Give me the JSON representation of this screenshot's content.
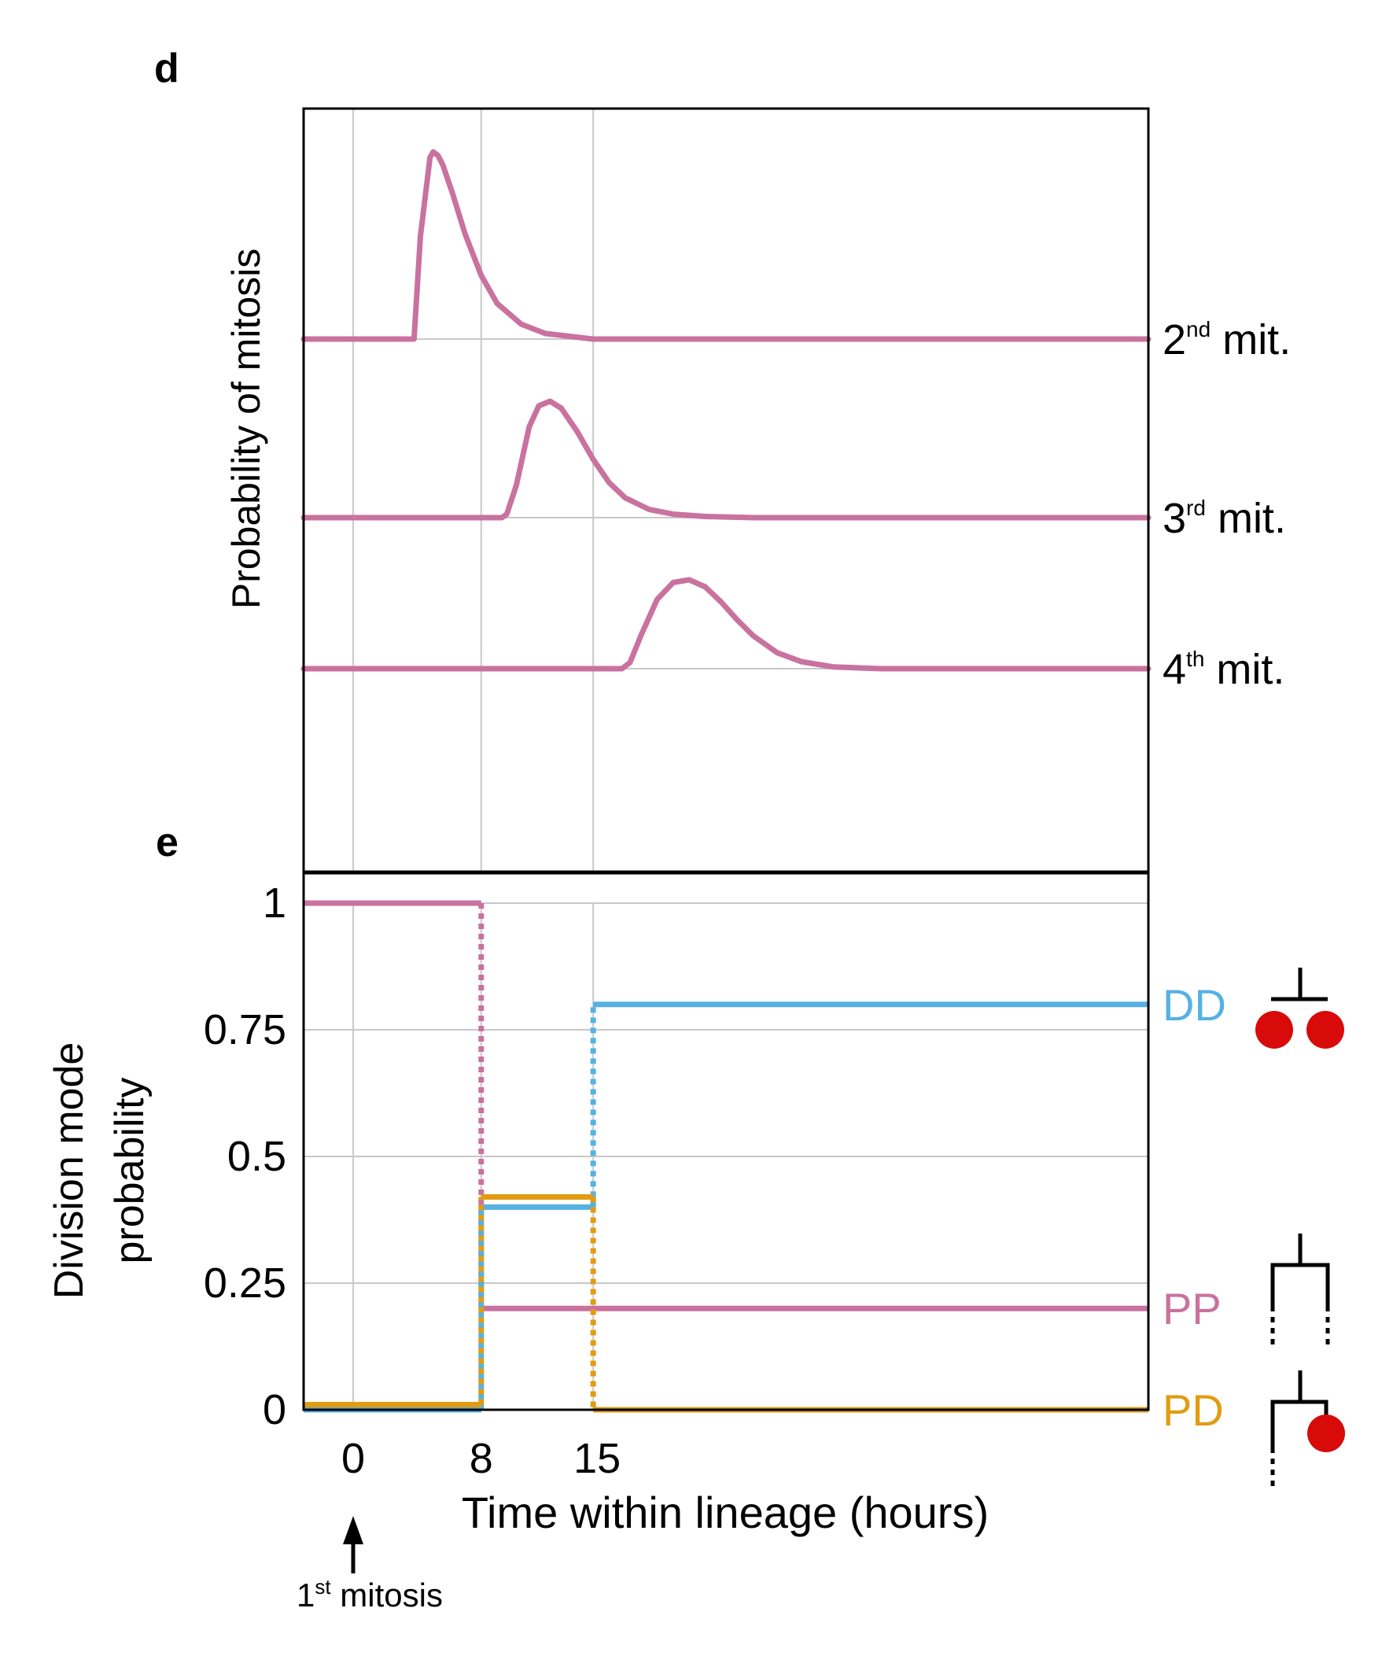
{
  "colors": {
    "magenta": "#C9729F",
    "blue": "#55B1E3",
    "orange": "#E29C12",
    "red_cell": "#D80A0A",
    "grid": "#C8C8C8"
  },
  "panels": {
    "d_label": "d",
    "e_label": "e"
  },
  "chart_data": [
    {
      "panel": "d",
      "type": "line",
      "ylabel": "Probability of mitosis",
      "xlabel": "",
      "xlim": [
        -3.1,
        49.7
      ],
      "x_gridlines": [
        0,
        8,
        15
      ],
      "grid": true,
      "legend": "labels at right end of each curve",
      "series": [
        {
          "label_base": "2",
          "label_sup": "nd",
          "label_rest": " mit.",
          "baseline_offset": 0,
          "x": [
            -3.1,
            3.8,
            4.2,
            4.8,
            5.0,
            5.3,
            5.6,
            6.2,
            7.0,
            8.0,
            9.0,
            10.5,
            12.0,
            14.0,
            15.0,
            49.7
          ],
          "y": [
            0,
            0,
            0.55,
            0.97,
            1.0,
            0.98,
            0.93,
            0.78,
            0.56,
            0.34,
            0.19,
            0.08,
            0.03,
            0.01,
            0,
            0
          ]
        },
        {
          "label_base": "3",
          "label_sup": "rd",
          "label_rest": " mit.",
          "baseline_offset": 0,
          "x": [
            -3.1,
            9.3,
            9.6,
            10.2,
            11.0,
            11.6,
            12.3,
            13.0,
            14.0,
            15.0,
            16.0,
            17.0,
            18.5,
            20.0,
            22.0,
            25.0,
            49.7
          ],
          "y": [
            0,
            0,
            0.03,
            0.28,
            0.78,
            0.96,
            1.0,
            0.94,
            0.74,
            0.5,
            0.3,
            0.17,
            0.07,
            0.03,
            0.01,
            0,
            0
          ]
        },
        {
          "label_base": "4",
          "label_sup": "th",
          "label_rest": " mit.",
          "baseline_offset": 0,
          "x": [
            -3.1,
            16.8,
            17.3,
            18.0,
            19.0,
            20.0,
            21.0,
            22.0,
            23.0,
            24.0,
            25.0,
            26.5,
            28.0,
            30.0,
            33.0,
            49.7
          ],
          "y": [
            0,
            0,
            0.07,
            0.38,
            0.78,
            0.97,
            1.0,
            0.92,
            0.75,
            0.55,
            0.37,
            0.18,
            0.08,
            0.02,
            0,
            0
          ]
        }
      ]
    },
    {
      "panel": "e",
      "type": "line",
      "style": "step",
      "ylabel": [
        "Division mode",
        "probability"
      ],
      "xlabel": "Time within lineage (hours)",
      "xticks": [
        "0",
        "8",
        "15"
      ],
      "xtick_values": [
        0,
        8,
        15
      ],
      "yticks": [
        "0",
        "0.25",
        "0.5",
        "0.75",
        "1"
      ],
      "ytick_values": [
        0,
        0.25,
        0.5,
        0.75,
        1
      ],
      "xlim": [
        -3.1,
        49.7
      ],
      "ylim": [
        0,
        1
      ],
      "grid": true,
      "legend": "labels at right end of each line",
      "series": [
        {
          "name": "PP",
          "color_key": "magenta",
          "x": [
            -3.1,
            8,
            8,
            49.7
          ],
          "y": [
            1,
            1,
            0.2,
            0.2
          ]
        },
        {
          "name": "DD",
          "color_key": "blue",
          "x": [
            -3.1,
            8,
            8,
            15,
            15,
            49.7
          ],
          "y": [
            0,
            0,
            0.4,
            0.4,
            0.8,
            0.8
          ]
        },
        {
          "name": "PD",
          "color_key": "orange",
          "x": [
            -3.1,
            8,
            8,
            15,
            15,
            49.7
          ],
          "y": [
            0.01,
            0.01,
            0.42,
            0.42,
            0,
            0
          ]
        }
      ],
      "annotation": {
        "base": "1",
        "sup": "st",
        "rest": " mitosis",
        "x": 0
      }
    }
  ]
}
